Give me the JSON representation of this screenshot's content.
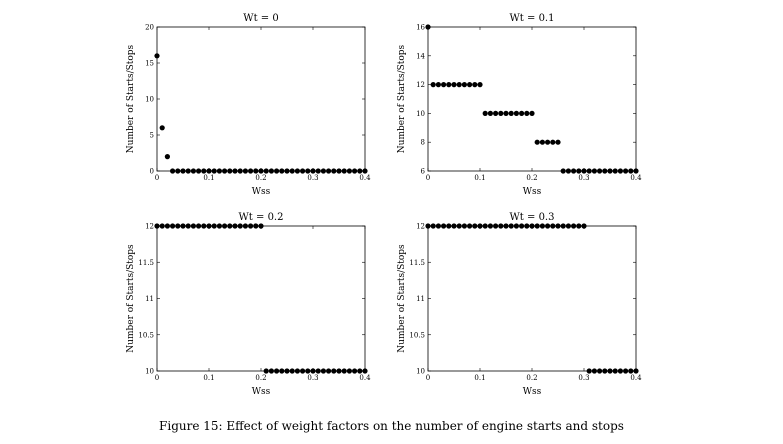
{
  "caption": "Figure 15: Effect of weight factors on the number of engine starts and stops",
  "chart_data": [
    {
      "type": "scatter",
      "title": "Wt = 0",
      "xlabel": "Wss",
      "ylabel": "Number of Starts/Stops",
      "xlim": [
        0,
        0.4
      ],
      "ylim": [
        0,
        20
      ],
      "xticks": [
        0,
        0.1,
        0.2,
        0.3,
        0.4
      ],
      "xtick_labels": [
        "0",
        "0.1",
        "0.2",
        "0.3",
        "0.4"
      ],
      "yticks": [
        0,
        5,
        10,
        15,
        20
      ],
      "ytick_labels": [
        "0",
        "5",
        "10",
        "15",
        "20"
      ],
      "segments": [
        {
          "x": [
            0
          ],
          "y": 16
        },
        {
          "x": [
            0.01
          ],
          "y": 6
        },
        {
          "x": [
            0.02
          ],
          "y": 2
        },
        {
          "from": 0.03,
          "to": 0.4,
          "step": 0.01,
          "y": 0
        }
      ]
    },
    {
      "type": "scatter",
      "title": "Wt = 0.1",
      "xlabel": "Wss",
      "ylabel": "Number of Starts/Stops",
      "xlim": [
        0,
        0.4
      ],
      "ylim": [
        6,
        16
      ],
      "xticks": [
        0,
        0.1,
        0.2,
        0.3,
        0.4
      ],
      "xtick_labels": [
        "0",
        "0.1",
        "0.2",
        "0.3",
        "0.4"
      ],
      "yticks": [
        6,
        8,
        10,
        12,
        14,
        16
      ],
      "ytick_labels": [
        "6",
        "8",
        "10",
        "12",
        "14",
        "16"
      ],
      "segments": [
        {
          "x": [
            0
          ],
          "y": 16
        },
        {
          "from": 0.01,
          "to": 0.1,
          "step": 0.01,
          "y": 12
        },
        {
          "from": 0.11,
          "to": 0.2,
          "step": 0.01,
          "y": 10
        },
        {
          "from": 0.21,
          "to": 0.25,
          "step": 0.01,
          "y": 8
        },
        {
          "from": 0.26,
          "to": 0.4,
          "step": 0.01,
          "y": 6
        }
      ]
    },
    {
      "type": "scatter",
      "title": "Wt = 0.2",
      "xlabel": "Wss",
      "ylabel": "Number of Starts/Stops",
      "xlim": [
        0,
        0.4
      ],
      "ylim": [
        10,
        12
      ],
      "xticks": [
        0,
        0.1,
        0.2,
        0.3,
        0.4
      ],
      "xtick_labels": [
        "0",
        "0.1",
        "0.2",
        "0.3",
        "0.4"
      ],
      "yticks": [
        10,
        10.5,
        11,
        11.5,
        12
      ],
      "ytick_labels": [
        "10",
        "10.5",
        "11",
        "11.5",
        "12"
      ],
      "segments": [
        {
          "from": 0,
          "to": 0.2,
          "step": 0.01,
          "y": 12
        },
        {
          "from": 0.21,
          "to": 0.4,
          "step": 0.01,
          "y": 10
        }
      ]
    },
    {
      "type": "scatter",
      "title": "Wt = 0.3",
      "xlabel": "Wss",
      "ylabel": "Number of Starts/Stops",
      "xlim": [
        0,
        0.4
      ],
      "ylim": [
        10,
        12
      ],
      "xticks": [
        0,
        0.1,
        0.2,
        0.3,
        0.4
      ],
      "xtick_labels": [
        "0",
        "0.1",
        "0.2",
        "0.3",
        "0.4"
      ],
      "yticks": [
        10,
        10.5,
        11,
        11.5,
        12
      ],
      "ytick_labels": [
        "10",
        "10.5",
        "11",
        "11.5",
        "12"
      ],
      "segments": [
        {
          "from": 0,
          "to": 0.3,
          "step": 0.01,
          "y": 12
        },
        {
          "from": 0.31,
          "to": 0.4,
          "step": 0.01,
          "y": 10
        }
      ]
    }
  ]
}
